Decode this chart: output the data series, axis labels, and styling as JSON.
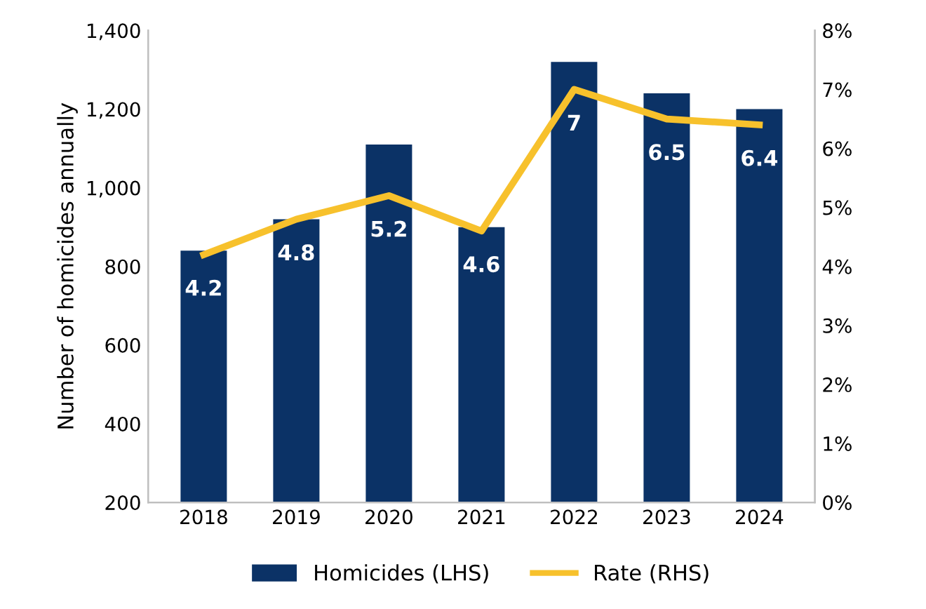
{
  "chart_data": {
    "type": "bar",
    "ylabel": "Number of homicides annually",
    "categories": [
      "2018",
      "2019",
      "2020",
      "2021",
      "2022",
      "2023",
      "2024"
    ],
    "series": [
      {
        "name": "Homicides (LHS)",
        "color": "#0b3266",
        "values": [
          840,
          920,
          1110,
          900,
          1320,
          1240,
          1200
        ]
      },
      {
        "name": "Rate (RHS)",
        "type": "line",
        "axis": "y2",
        "color": "#f7c12c",
        "values": [
          4.2,
          4.8,
          5.2,
          4.6,
          7,
          6.5,
          6.4
        ],
        "value_labels": [
          "4.2",
          "4.8",
          "5.2",
          "4.6",
          "7",
          "6.5",
          "6.4"
        ]
      }
    ],
    "ylim": [
      200,
      1400
    ],
    "yticks": [
      200,
      400,
      600,
      800,
      {
        "value": 1000,
        "label": "1,000"
      },
      {
        "value": 1200,
        "label": "1,200"
      },
      {
        "value": 1400,
        "label": "1,400"
      }
    ],
    "y2lim": [
      0,
      8
    ],
    "y2ticks": [
      {
        "value": 0,
        "label": "0%"
      },
      {
        "value": 1,
        "label": "1%"
      },
      {
        "value": 2,
        "label": "2%"
      },
      {
        "value": 3,
        "label": "3%"
      },
      {
        "value": 4,
        "label": "4%"
      },
      {
        "value": 5,
        "label": "5%"
      },
      {
        "value": 6,
        "label": "6%"
      },
      {
        "value": 7,
        "label": "7%"
      },
      {
        "value": 8,
        "label": "8%"
      }
    ],
    "legend": "bottom",
    "grid": false,
    "marker": "none",
    "line_style": "solid"
  }
}
